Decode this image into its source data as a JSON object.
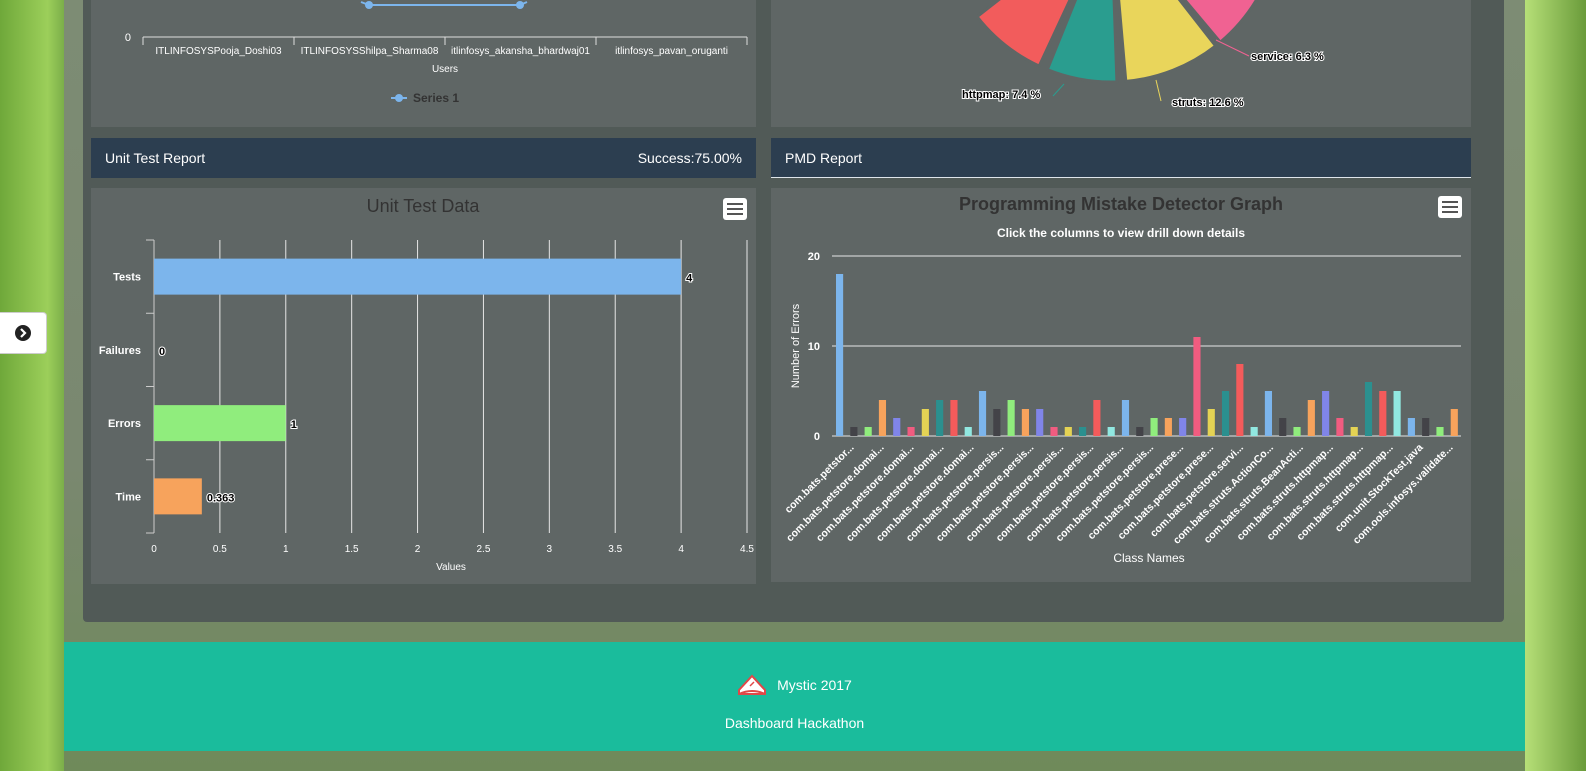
{
  "top_left_chart": {
    "y_tick": "0",
    "categories": [
      "ITLINFOSYSPooja_Doshi03",
      "ITLINFOSYSShilpa_Sharma08",
      "itlinfosys_akansha_bhardwaj01",
      "itlinfosys_pavan_oruganti"
    ],
    "x_axis_label": "Users",
    "legend": "Series 1"
  },
  "top_right_pie": {
    "labels": {
      "service": "service: 6.3 %",
      "httpmap": "httpmap: 7.4 %",
      "struts": "struts: 12.6 %"
    },
    "colors": [
      "#f25c5c",
      "#2a9d8f",
      "#e9d55b",
      "#f06292",
      "#8e8ee6"
    ]
  },
  "unit_test": {
    "header_title": "Unit Test Report",
    "header_status": "Success:75.00%",
    "chart_title": "Unit Test Data",
    "axis_label": "Values"
  },
  "pmd": {
    "header_title": "PMD Report",
    "chart_title": "Programming Mistake Detector Graph",
    "subtitle": "Click the columns to view drill down details",
    "y_axis_label": "Number of Errors",
    "x_axis_label": "Class Names"
  },
  "footer": {
    "brand": "Mystic 2017",
    "subtitle": "Dashboard Hackathon"
  },
  "icons": {
    "sidebar_toggle": "chevron-right-circle-icon",
    "menu": "hamburger-icon",
    "brand": "book-logo-icon"
  },
  "chart_data": [
    {
      "type": "bar",
      "orientation": "horizontal",
      "title": "Unit Test Data",
      "xlabel": "Values",
      "categories": [
        "Tests",
        "Failures",
        "Errors",
        "Time"
      ],
      "values": [
        4,
        0,
        1,
        0.363
      ],
      "value_labels": [
        "4",
        "0",
        "1",
        "0.363"
      ],
      "colors": [
        "#7cb5ec",
        "#434348",
        "#90ed7d",
        "#f7a35c"
      ],
      "xlim": [
        0,
        4.5
      ],
      "ticks": [
        "0",
        "0.5",
        "1",
        "1.5",
        "2",
        "2.5",
        "3",
        "3.5",
        "4",
        "4.5"
      ],
      "grid": true
    },
    {
      "type": "bar",
      "title": "Programming Mistake Detector Graph",
      "subtitle": "Click the columns to view drill down details",
      "xlabel": "Class Names",
      "ylabel": "Number of Errors",
      "ylim": [
        0,
        20
      ],
      "yticks": [
        "0",
        "10",
        "20"
      ],
      "values": [
        18,
        1,
        1,
        4,
        2,
        1,
        3,
        4,
        4,
        1,
        5,
        3,
        4,
        3,
        3,
        1,
        1,
        1,
        4,
        1,
        4,
        1,
        2,
        2,
        2,
        11,
        3,
        5,
        8,
        1,
        5,
        2,
        1,
        4,
        5,
        2,
        1,
        6,
        5,
        5,
        2,
        2,
        1,
        3
      ],
      "colors": [
        "#7cb5ec",
        "#434348",
        "#90ed7d",
        "#f7a35c",
        "#8085e9",
        "#f15c80",
        "#e4d354",
        "#2b908f",
        "#f45b5b",
        "#91e8e1"
      ],
      "category_labels": [
        "com.bats.petstor...",
        "com.bats.petstore.domai...",
        "com.bats.petstore.domai...",
        "com.bats.petstore.domai...",
        "com.bats.petstore.domai...",
        "com.bats.petstore.persis...",
        "com.bats.petstore.persis...",
        "com.bats.petstore.persis...",
        "com.bats.petstore.persis...",
        "com.bats.petstore.persis...",
        "com.bats.petstore.persis...",
        "com.bats.petstore.prese...",
        "com.bats.petstore.prese...",
        "com.bats.petstore.servi...",
        "com.bats.struts.ActionCo...",
        "com.bats.struts.BeanActi...",
        "com.bats.struts.httpmap...",
        "com.bats.struts.httpmap...",
        "com.bats.struts.httpmap...",
        "com.unit.StockTest.java",
        "com.ools.infosys.validate..."
      ],
      "grid": true
    }
  ]
}
